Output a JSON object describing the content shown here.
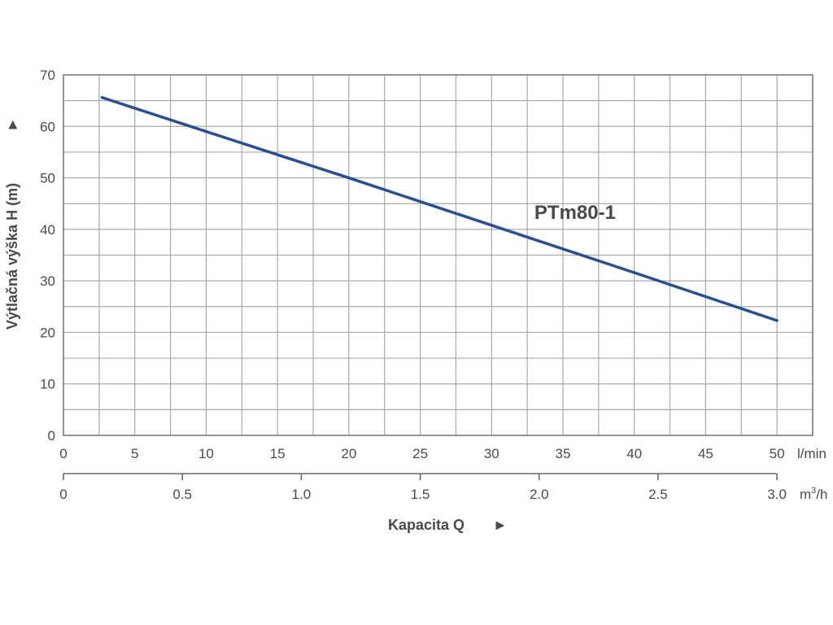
{
  "chart_data": {
    "type": "line",
    "title": "",
    "xlabel": "Kapacita Q",
    "xlabel_arrow": "►",
    "ylabel": "Výtlačná výška H (m)",
    "ylabel_arrow": "►",
    "xlim": [
      0,
      52.5
    ],
    "ylim": [
      0,
      70
    ],
    "grid": true,
    "x_ticks": [
      0,
      5,
      10,
      15,
      20,
      25,
      30,
      35,
      40,
      45,
      50
    ],
    "x_tick_labels": [
      "0",
      "5",
      "10",
      "15",
      "20",
      "25",
      "30",
      "35",
      "40",
      "45",
      "50"
    ],
    "x_unit": "l/min",
    "x2_ticks": [
      0,
      0.5,
      1.0,
      1.5,
      2.0,
      2.5,
      3.0
    ],
    "x2_tick_labels": [
      "0",
      "0.5",
      "1.0",
      "1.5",
      "2.0",
      "2.5",
      "3.0"
    ],
    "x2_unit_base": "m",
    "x2_unit_sup": "3",
    "x2_unit_tail": "/h",
    "y_ticks": [
      0,
      10,
      20,
      30,
      40,
      50,
      60,
      70
    ],
    "y_tick_labels": [
      "0",
      "10",
      "20",
      "30",
      "40",
      "50",
      "60",
      "70"
    ],
    "series": [
      {
        "name": "PTm80-1",
        "color": "#2a4f8e",
        "x": [
          2.7,
          10,
          20,
          30,
          40,
          50
        ],
        "y": [
          65.6,
          59.0,
          50.0,
          40.8,
          31.6,
          22.3
        ]
      }
    ],
    "series_label_position": {
      "x": 33,
      "y": 42
    }
  },
  "colors": {
    "grid": "#a8a8a8",
    "frame": "#7a7a7a",
    "axis": "#6a6a6a",
    "text": "#4a4a4a",
    "label": "#4a4a4a"
  }
}
